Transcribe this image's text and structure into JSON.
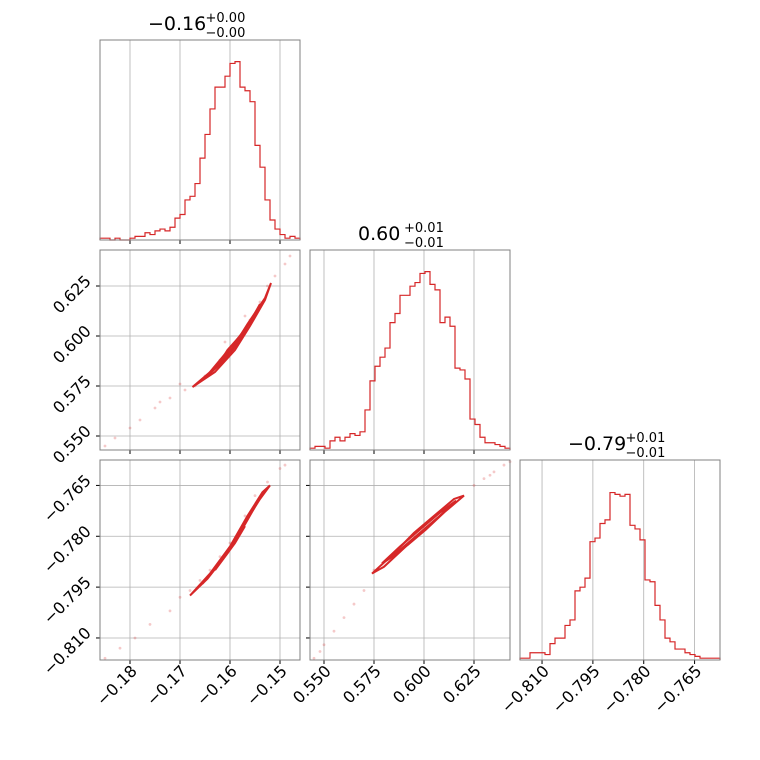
{
  "chart_data": {
    "type": "corner",
    "color": "#d62728",
    "parameters": [
      {
        "title": {
          "median": "−0.16",
          "upper": "+0.00",
          "lower": "−0.00"
        },
        "range": [
          -0.186,
          -0.146
        ],
        "ticks": [
          -0.18,
          -0.17,
          -0.16,
          -0.15
        ],
        "tick_labels": [
          "−0.18",
          "−0.17",
          "−0.16",
          "−0.15"
        ],
        "histogram": [
          0.01,
          0.01,
          0.0,
          0.01,
          0.0,
          0.0,
          0.01,
          0.02,
          0.02,
          0.04,
          0.03,
          0.05,
          0.06,
          0.05,
          0.07,
          0.12,
          0.14,
          0.22,
          0.24,
          0.31,
          0.45,
          0.58,
          0.72,
          0.84,
          0.84,
          0.9,
          0.97,
          0.98,
          0.84,
          0.82,
          0.76,
          0.52,
          0.4,
          0.22,
          0.11,
          0.06,
          0.03,
          0.01,
          0.02,
          0.01
        ]
      },
      {
        "title": {
          "median": "0.60",
          "upper": "+0.01",
          "lower": "−0.01"
        },
        "range": [
          0.543,
          0.643
        ],
        "ticks": [
          0.55,
          0.575,
          0.6,
          0.625
        ],
        "tick_labels": [
          "0.550",
          "0.575",
          "0.600",
          "0.625"
        ],
        "histogram": [
          0.01,
          0.02,
          0.02,
          0.01,
          0.05,
          0.07,
          0.05,
          0.07,
          0.09,
          0.08,
          0.1,
          0.22,
          0.38,
          0.46,
          0.51,
          0.56,
          0.7,
          0.75,
          0.85,
          0.85,
          0.9,
          0.92,
          0.97,
          0.98,
          0.91,
          0.88,
          0.7,
          0.73,
          0.68,
          0.45,
          0.44,
          0.39,
          0.17,
          0.14,
          0.07,
          0.04,
          0.04,
          0.03,
          0.02,
          0.01
        ]
      },
      {
        "title": {
          "median": "−0.79",
          "upper": "+0.01",
          "lower": "−0.01"
        },
        "range": [
          -0.8165,
          -0.7575
        ],
        "ticks": [
          -0.81,
          -0.795,
          -0.78,
          -0.765
        ],
        "tick_labels": [
          "−0.810",
          "−0.795",
          "−0.780",
          "−0.765"
        ],
        "histogram": [
          0.01,
          0.01,
          0.04,
          0.04,
          0.04,
          0.03,
          0.09,
          0.12,
          0.12,
          0.19,
          0.22,
          0.38,
          0.4,
          0.45,
          0.65,
          0.67,
          0.75,
          0.77,
          0.92,
          0.91,
          0.9,
          0.91,
          0.74,
          0.72,
          0.66,
          0.44,
          0.43,
          0.3,
          0.22,
          0.12,
          0.1,
          0.06,
          0.06,
          0.04,
          0.03,
          0.02,
          0.01,
          0.01,
          0.01,
          0.01
        ]
      }
    ],
    "pairs": [
      {
        "x_param": 0,
        "y_param": 1,
        "points": [
          [
            -0.17,
            0.576
          ],
          [
            -0.167,
            0.575
          ],
          [
            -0.165,
            0.58
          ],
          [
            -0.162,
            0.588
          ],
          [
            -0.16,
            0.593
          ],
          [
            -0.158,
            0.6
          ],
          [
            -0.156,
            0.608
          ],
          [
            -0.154,
            0.617
          ],
          [
            -0.1525,
            0.625
          ],
          [
            -0.151,
            0.63
          ],
          [
            -0.149,
            0.636
          ],
          [
            -0.148,
            0.64
          ],
          [
            -0.172,
            0.569
          ],
          [
            -0.175,
            0.564
          ],
          [
            -0.178,
            0.558
          ],
          [
            -0.18,
            0.554
          ],
          [
            -0.183,
            0.549
          ],
          [
            -0.185,
            0.545
          ],
          [
            -0.174,
            0.567
          ],
          [
            -0.169,
            0.573
          ],
          [
            -0.161,
            0.597
          ],
          [
            -0.157,
            0.61
          ]
        ],
        "contours": [
          [
            [
              -0.1675,
              0.5745
            ],
            [
              -0.163,
              0.582
            ],
            [
              -0.159,
              0.593
            ],
            [
              -0.156,
              0.605
            ],
            [
              -0.153,
              0.618
            ],
            [
              -0.1518,
              0.6265
            ],
            [
              -0.153,
              0.619
            ],
            [
              -0.1565,
              0.606
            ],
            [
              -0.1595,
              0.594
            ],
            [
              -0.1635,
              0.583
            ],
            [
              -0.1675,
              0.5745
            ]
          ],
          [
            [
              -0.165,
              0.579
            ],
            [
              -0.1615,
              0.587
            ],
            [
              -0.1585,
              0.596
            ],
            [
              -0.156,
              0.607
            ],
            [
              -0.154,
              0.616
            ],
            [
              -0.1555,
              0.608
            ],
            [
              -0.159,
              0.597
            ],
            [
              -0.162,
              0.588
            ],
            [
              -0.165,
              0.579
            ]
          ],
          [
            [
              -0.1625,
              0.585
            ],
            [
              -0.16,
              0.592
            ],
            [
              -0.158,
              0.599
            ],
            [
              -0.1565,
              0.605
            ],
            [
              -0.158,
              0.6
            ],
            [
              -0.1605,
              0.593
            ],
            [
              -0.1625,
              0.585
            ]
          ]
        ]
      },
      {
        "x_param": 0,
        "y_param": 2,
        "points": [
          [
            -0.17,
            -0.798
          ],
          [
            -0.166,
            -0.793
          ],
          [
            -0.162,
            -0.786
          ],
          [
            -0.16,
            -0.782
          ],
          [
            -0.157,
            -0.774
          ],
          [
            -0.155,
            -0.768
          ],
          [
            -0.1525,
            -0.764
          ],
          [
            -0.15,
            -0.76
          ],
          [
            -0.149,
            -0.759
          ],
          [
            -0.172,
            -0.802
          ],
          [
            -0.176,
            -0.806
          ],
          [
            -0.179,
            -0.81
          ],
          [
            -0.182,
            -0.813
          ],
          [
            -0.185,
            -0.816
          ],
          [
            -0.168,
            -0.796
          ],
          [
            -0.164,
            -0.79
          ]
        ],
        "contours": [
          [
            [
              -0.168,
              -0.7975
            ],
            [
              -0.164,
              -0.791
            ],
            [
              -0.16,
              -0.783
            ],
            [
              -0.1565,
              -0.774
            ],
            [
              -0.1535,
              -0.767
            ],
            [
              -0.152,
              -0.765
            ],
            [
              -0.154,
              -0.769
            ],
            [
              -0.157,
              -0.776
            ],
            [
              -0.1605,
              -0.785
            ],
            [
              -0.1645,
              -0.7925
            ],
            [
              -0.168,
              -0.7975
            ]
          ],
          [
            [
              -0.1655,
              -0.794
            ],
            [
              -0.162,
              -0.7875
            ],
            [
              -0.159,
              -0.781
            ],
            [
              -0.156,
              -0.7735
            ],
            [
              -0.1545,
              -0.77
            ],
            [
              -0.157,
              -0.7765
            ],
            [
              -0.16,
              -0.7835
            ],
            [
              -0.163,
              -0.7895
            ],
            [
              -0.1655,
              -0.794
            ]
          ],
          [
            [
              -0.163,
              -0.79
            ],
            [
              -0.1605,
              -0.785
            ],
            [
              -0.1585,
              -0.78
            ],
            [
              -0.157,
              -0.777
            ],
            [
              -0.159,
              -0.782
            ],
            [
              -0.161,
              -0.786
            ],
            [
              -0.163,
              -0.79
            ]
          ]
        ]
      },
      {
        "x_param": 1,
        "y_param": 2,
        "points": [
          [
            0.545,
            -0.816
          ],
          [
            0.55,
            -0.812
          ],
          [
            0.555,
            -0.808
          ],
          [
            0.56,
            -0.804
          ],
          [
            0.565,
            -0.8
          ],
          [
            0.57,
            -0.796
          ],
          [
            0.575,
            -0.79
          ],
          [
            0.625,
            -0.765
          ],
          [
            0.63,
            -0.763
          ],
          [
            0.635,
            -0.761
          ],
          [
            0.64,
            -0.759
          ],
          [
            0.643,
            -0.758
          ],
          [
            0.548,
            -0.814
          ],
          [
            0.633,
            -0.762
          ]
        ],
        "contours": [
          [
            [
              0.574,
              -0.791
            ],
            [
              0.585,
              -0.785
            ],
            [
              0.595,
              -0.779
            ],
            [
              0.605,
              -0.774
            ],
            [
              0.615,
              -0.769
            ],
            [
              0.62,
              -0.768
            ],
            [
              0.61,
              -0.773
            ],
            [
              0.6,
              -0.778
            ],
            [
              0.59,
              -0.7835
            ],
            [
              0.58,
              -0.789
            ],
            [
              0.574,
              -0.791
            ]
          ],
          [
            [
              0.579,
              -0.788
            ],
            [
              0.588,
              -0.783
            ],
            [
              0.598,
              -0.778
            ],
            [
              0.608,
              -0.773
            ],
            [
              0.616,
              -0.7695
            ],
            [
              0.607,
              -0.7745
            ],
            [
              0.597,
              -0.7795
            ],
            [
              0.587,
              -0.785
            ],
            [
              0.579,
              -0.788
            ]
          ],
          [
            [
              0.585,
              -0.7855
            ],
            [
              0.594,
              -0.781
            ],
            [
              0.603,
              -0.7765
            ],
            [
              0.61,
              -0.773
            ],
            [
              0.601,
              -0.778
            ],
            [
              0.592,
              -0.7825
            ],
            [
              0.585,
              -0.7855
            ]
          ]
        ]
      }
    ]
  }
}
